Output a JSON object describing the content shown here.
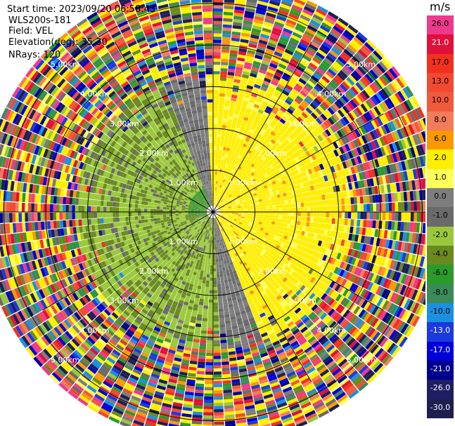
{
  "meta": {
    "start_time": "Start time: 2023/09/20 06:58:43",
    "instrument": "WLS200s-181",
    "field": "Field: VEL",
    "elevation": "Elevation(deg): 35.30",
    "nrays": "NRays: 120"
  },
  "colorbar": {
    "units": "m/s",
    "bins": [
      {
        "label": "26.0",
        "color": "#ee3a8c"
      },
      {
        "label": "21.0",
        "color": "#e0103a"
      },
      {
        "label": "17.0",
        "color": "#f2301e"
      },
      {
        "label": "13.0",
        "color": "#f04a32"
      },
      {
        "label": "10.0",
        "color": "#f05a3c"
      },
      {
        "label": "8.0",
        "color": "#f47c5a"
      },
      {
        "label": "6.0",
        "color": "#fa9a00"
      },
      {
        "label": "2.0",
        "color": "#ffee00"
      },
      {
        "label": "1.0",
        "color": "#ffff5a"
      },
      {
        "label": "0.0",
        "color": "#7d7d7d"
      },
      {
        "label": "-1.0",
        "color": "#6a6a6a"
      },
      {
        "label": "-2.0",
        "color": "#9ac83a"
      },
      {
        "label": "-4.0",
        "color": "#6a8a20"
      },
      {
        "label": "-6.0",
        "color": "#2a9a2a"
      },
      {
        "label": "-8.0",
        "color": "#3a8a5a"
      },
      {
        "label": "-10.0",
        "color": "#1a90e0"
      },
      {
        "label": "-13.0",
        "color": "#1a3ae0"
      },
      {
        "label": "-17.0",
        "color": "#0000d8"
      },
      {
        "label": "-21.0",
        "color": "#000090"
      },
      {
        "label": "-26.0",
        "color": "#1e1e64"
      },
      {
        "label": "-30.0",
        "color": "#1e1e50"
      }
    ]
  },
  "chart_data": {
    "type": "heatmap",
    "projection": "polar PPI",
    "field": "VEL",
    "units": "m/s",
    "nrays": 120,
    "elevation_deg": 35.3,
    "range_rings_km": [
      1.0,
      2.0,
      3.0,
      4.0,
      5.0
    ],
    "ring_labels": [
      "1.00km",
      "2.00km",
      "3.00km",
      "4.00km",
      "5.00km"
    ],
    "spoke_azimuths_deg": [
      0,
      30,
      60,
      90,
      120,
      150,
      180,
      210,
      240,
      270,
      300,
      330
    ],
    "max_range_km": 5.6,
    "pattern": {
      "near_range_west": "green (-2 to -8 m/s)",
      "near_range_east": "yellow (1 to 2 m/s)",
      "zero_isodop": "grey band running roughly north-south",
      "far_range": "noisy random colors beyond ~3.3 km"
    }
  }
}
